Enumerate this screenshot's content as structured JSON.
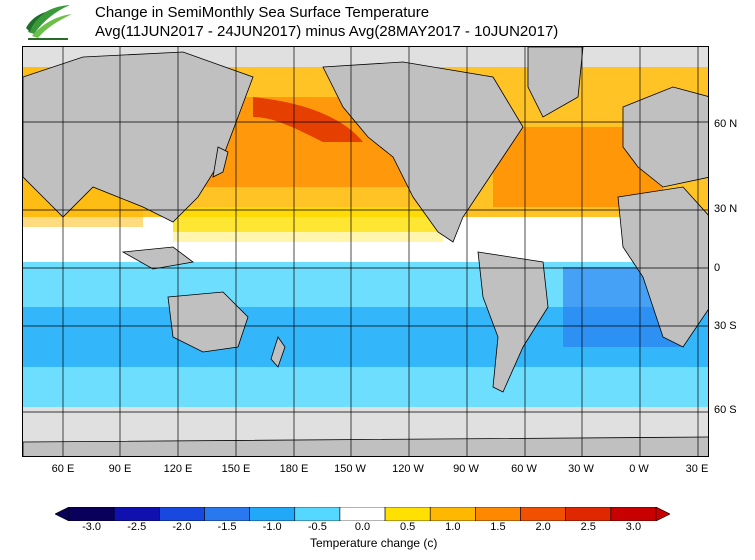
{
  "title": {
    "line1": "Change in SemiMonthly Sea Surface Temperature",
    "line2": "Avg(11JUN2017 - 24JUN2017) minus Avg(28MAY2017 - 10JUN2017)"
  },
  "longitude_labels": [
    "60 E",
    "90 E",
    "120 E",
    "150 E",
    "180 E",
    "150 W",
    "120 W",
    "90 W",
    "60 W",
    "30 W",
    "0 W",
    "30 E"
  ],
  "latitude_labels": [
    "60 N",
    "30 N",
    "0",
    "30 S",
    "60 S"
  ],
  "legend": {
    "title": "Temperature change  (c)",
    "ticks": [
      "-3.0",
      "-2.5",
      "-2.0",
      "-1.5",
      "-1.0",
      "-0.5",
      "0.0",
      "0.5",
      "1.0",
      "1.5",
      "2.0",
      "2.5",
      "3.0"
    ],
    "colors": [
      "#08005a",
      "#1010b0",
      "#1848e0",
      "#2a78f0",
      "#22a8f8",
      "#55d8ff",
      "#ffffff",
      "#ffe000",
      "#ffb800",
      "#ff8800",
      "#f05000",
      "#e02800",
      "#c80000"
    ]
  },
  "colors": {
    "land": "#c0c0c0",
    "ice": "#e0e0e0",
    "grid": "#000000"
  }
}
